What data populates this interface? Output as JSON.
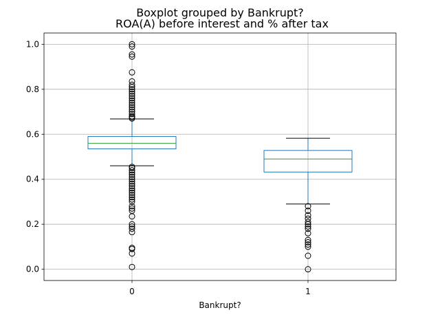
{
  "chart_data": {
    "type": "box",
    "suptitle": "Boxplot grouped by Bankrupt?",
    "title": "ROA(A) before interest and % after tax",
    "xlabel": "Bankrupt?",
    "ylabel": "",
    "categories": [
      "0",
      "1"
    ],
    "ylim": [
      -0.05,
      1.05
    ],
    "yticks": [
      0.0,
      0.2,
      0.4,
      0.6,
      0.8,
      1.0
    ],
    "ytick_labels": [
      "0.0",
      "0.2",
      "0.4",
      "0.6",
      "0.8",
      "1.0"
    ],
    "grid": true,
    "colors": {
      "box": "#1f77b4",
      "median": "#2ca02c",
      "whisker": "#1f77b4",
      "cap": "#000000",
      "flier": "#000000",
      "grid": "#b0b0b0"
    },
    "boxes": [
      {
        "category": "0",
        "q1": 0.535,
        "median": 0.56,
        "q3": 0.59,
        "whisker_low": 0.46,
        "whisker_high": 0.668,
        "fliers": [
          1.0,
          0.99,
          0.955,
          0.945,
          0.875,
          0.835,
          0.82,
          0.81,
          0.8,
          0.79,
          0.78,
          0.77,
          0.76,
          0.75,
          0.74,
          0.73,
          0.72,
          0.71,
          0.7,
          0.69,
          0.68,
          0.675,
          0.67,
          0.455,
          0.45,
          0.44,
          0.43,
          0.42,
          0.41,
          0.4,
          0.39,
          0.38,
          0.37,
          0.36,
          0.35,
          0.34,
          0.33,
          0.32,
          0.31,
          0.3,
          0.28,
          0.27,
          0.26,
          0.235,
          0.2,
          0.19,
          0.18,
          0.165,
          0.095,
          0.09,
          0.07,
          0.01
        ]
      },
      {
        "category": "1",
        "q1": 0.432,
        "median": 0.49,
        "q3": 0.528,
        "whisker_low": 0.29,
        "whisker_high": 0.582,
        "fliers": [
          0.28,
          0.26,
          0.24,
          0.225,
          0.21,
          0.2,
          0.19,
          0.18,
          0.16,
          0.13,
          0.12,
          0.11,
          0.1,
          0.06,
          0.0
        ]
      }
    ]
  }
}
